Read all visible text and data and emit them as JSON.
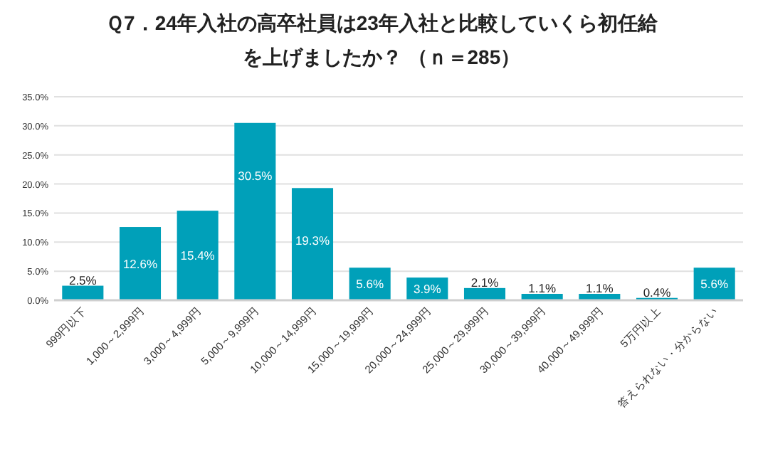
{
  "chart_data": {
    "type": "bar",
    "title": "Ｑ7．24年入社の高卒社員は23年入社と比較していくら初任給を上げましたか？ （ｎ＝285）",
    "categories": [
      "999円以下",
      "1,000～2,999円",
      "3,000～4,999円",
      "5,000～9,999円",
      "10,000～14,999円",
      "15,000～19,999円",
      "20,000～24,999円",
      "25,000～29,999円",
      "30,000～39,999円",
      "40,000～49,999円",
      "5万円以上",
      "答えられない・分からない"
    ],
    "values": [
      2.5,
      12.6,
      15.4,
      30.5,
      19.3,
      5.6,
      3.9,
      2.1,
      1.1,
      1.1,
      0.4,
      5.6
    ],
    "value_labels": [
      "2.5%",
      "12.6%",
      "15.4%",
      "30.5%",
      "19.3%",
      "5.6%",
      "3.9%",
      "2.1%",
      "1.1%",
      "1.1%",
      "0.4%",
      "5.6%"
    ],
    "color": "#00a0b9",
    "ylim": [
      0,
      35
    ],
    "yticks": [
      {
        "value": 0,
        "label": "0.0%"
      },
      {
        "value": 5,
        "label": "5.0%"
      },
      {
        "value": 10,
        "label": "10.0%"
      },
      {
        "value": 15,
        "label": "15.0%"
      },
      {
        "value": 20,
        "label": "20.0%"
      },
      {
        "value": 25,
        "label": "25.0%"
      },
      {
        "value": 30,
        "label": "30.0%"
      },
      {
        "value": 35,
        "label": "35.0%"
      }
    ],
    "grid": "y"
  }
}
